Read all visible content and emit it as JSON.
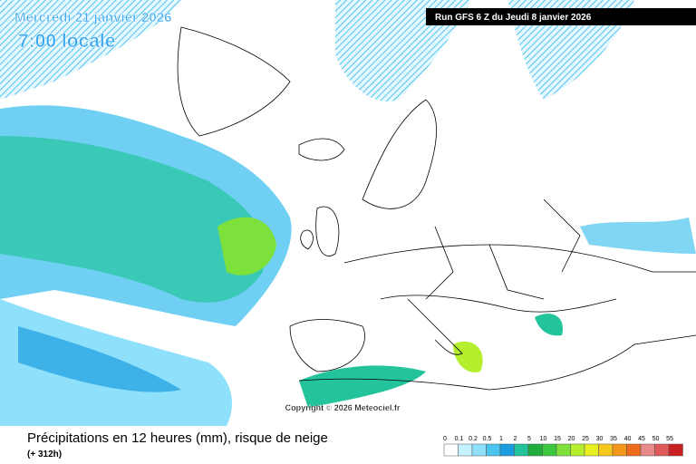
{
  "header": {
    "date": "Mercredi 21 janvier 2026",
    "time": "7:00 locale",
    "run": "Run GFS 6 Z du Jeudi 8 janvier 2026"
  },
  "map": {
    "copyright": "Copyright © 2026 Meteociel.fr"
  },
  "footer": {
    "title": "Précipitations en 12 heures (mm), risque de neige",
    "lead": "(+ 312h)"
  },
  "legend": {
    "items": [
      {
        "label": "0",
        "color": "#ffffff"
      },
      {
        "label": "0.1",
        "color": "#c4f2ff"
      },
      {
        "label": "0.2",
        "color": "#8ee0fb"
      },
      {
        "label": "0.5",
        "color": "#4cc4f0"
      },
      {
        "label": "1",
        "color": "#1c9ce0"
      },
      {
        "label": "2",
        "color": "#23c49c"
      },
      {
        "label": "5",
        "color": "#1fae3e"
      },
      {
        "label": "10",
        "color": "#3bc840"
      },
      {
        "label": "15",
        "color": "#7ee03a"
      },
      {
        "label": "20",
        "color": "#b4ee2c"
      },
      {
        "label": "25",
        "color": "#e6f020"
      },
      {
        "label": "30",
        "color": "#f6c81c"
      },
      {
        "label": "35",
        "color": "#f4961a"
      },
      {
        "label": "40",
        "color": "#ee6a1c"
      },
      {
        "label": "45",
        "color": "#e88a8a"
      },
      {
        "label": "50",
        "color": "#e05a5a"
      },
      {
        "label": "55",
        "color": "#c82020"
      }
    ]
  }
}
